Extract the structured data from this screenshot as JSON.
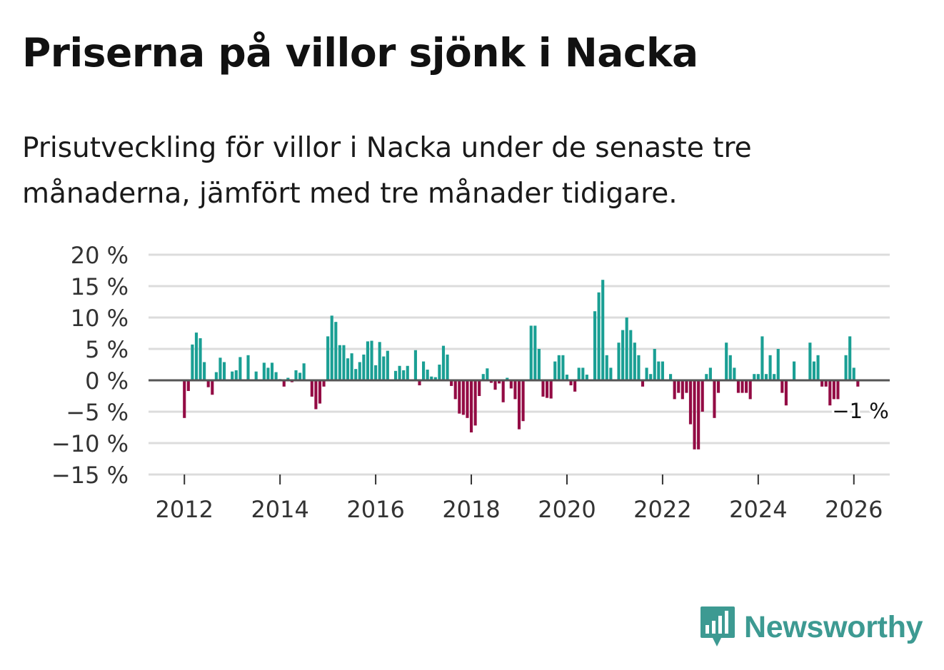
{
  "title": "Priserna på villor sjönk i Nacka",
  "subtitle": "Prisutveckling för villor i Nacka under de senaste tre månaderna, jämfört med tre månader tidigare.",
  "brand": {
    "name": "Newsworthy",
    "icon": "bar-chart-speech-bubble-icon",
    "color": "#3d9a92"
  },
  "colors": {
    "positive": "#1a9f94",
    "negative": "#930b44",
    "zero_line": "#555555",
    "grid": "#dcdcdc"
  },
  "chart_data": {
    "type": "bar",
    "title": "Priserna på villor sjönk i Nacka",
    "xlabel": "",
    "ylabel": "",
    "x_unit": "month",
    "ylim": [
      -15,
      20
    ],
    "xlim": [
      "2011-04",
      "2026-10"
    ],
    "yticks": [
      20,
      15,
      10,
      5,
      0,
      -5,
      -10,
      -15
    ],
    "ytick_labels": [
      "20 %",
      "15 %",
      "10 %",
      "5 %",
      "0 %",
      "−5 %",
      "−10 %",
      "−15 %"
    ],
    "xticks": [
      "2012",
      "2014",
      "2016",
      "2018",
      "2020",
      "2022",
      "2024",
      "2026"
    ],
    "grid": true,
    "legend": "none",
    "annotation": {
      "x": "2026-02",
      "y": -1,
      "text": "−1 %"
    },
    "x": [
      "2012-01",
      "2012-02",
      "2012-03",
      "2012-04",
      "2012-05",
      "2012-06",
      "2012-07",
      "2012-08",
      "2012-09",
      "2012-10",
      "2012-11",
      "2012-12",
      "2013-01",
      "2013-02",
      "2013-03",
      "2013-04",
      "2013-05",
      "2013-06",
      "2013-07",
      "2013-08",
      "2013-09",
      "2013-10",
      "2013-11",
      "2013-12",
      "2014-01",
      "2014-02",
      "2014-03",
      "2014-04",
      "2014-05",
      "2014-06",
      "2014-07",
      "2014-08",
      "2014-09",
      "2014-10",
      "2014-11",
      "2014-12",
      "2015-01",
      "2015-02",
      "2015-03",
      "2015-04",
      "2015-05",
      "2015-06",
      "2015-07",
      "2015-08",
      "2015-09",
      "2015-10",
      "2015-11",
      "2015-12",
      "2016-01",
      "2016-02",
      "2016-03",
      "2016-04",
      "2016-05",
      "2016-06",
      "2016-07",
      "2016-08",
      "2016-09",
      "2016-10",
      "2016-11",
      "2016-12",
      "2017-01",
      "2017-02",
      "2017-03",
      "2017-04",
      "2017-05",
      "2017-06",
      "2017-07",
      "2017-08",
      "2017-09",
      "2017-10",
      "2017-11",
      "2017-12",
      "2018-01",
      "2018-02",
      "2018-03",
      "2018-04",
      "2018-05",
      "2018-06",
      "2018-07",
      "2018-08",
      "2018-09",
      "2018-10",
      "2018-11",
      "2018-12",
      "2019-01",
      "2019-02",
      "2019-03",
      "2019-04",
      "2019-05",
      "2019-06",
      "2019-07",
      "2019-08",
      "2019-09",
      "2019-10",
      "2019-11",
      "2019-12",
      "2020-01",
      "2020-02",
      "2020-03",
      "2020-04",
      "2020-05",
      "2020-06",
      "2020-07",
      "2020-08",
      "2020-09",
      "2020-10",
      "2020-11",
      "2020-12",
      "2021-01",
      "2021-02",
      "2021-03",
      "2021-04",
      "2021-05",
      "2021-06",
      "2021-07",
      "2021-08",
      "2021-09",
      "2021-10",
      "2021-11",
      "2021-12",
      "2022-01",
      "2022-02",
      "2022-03",
      "2022-04",
      "2022-05",
      "2022-06",
      "2022-07",
      "2022-08",
      "2022-09",
      "2022-10",
      "2022-11",
      "2022-12",
      "2023-01",
      "2023-02",
      "2023-03",
      "2023-04",
      "2023-05",
      "2023-06",
      "2023-07",
      "2023-08",
      "2023-09",
      "2023-10",
      "2023-11",
      "2023-12",
      "2024-01",
      "2024-02",
      "2024-03",
      "2024-04",
      "2024-05",
      "2024-06",
      "2024-07",
      "2024-08",
      "2024-09",
      "2024-10",
      "2024-11",
      "2024-12",
      "2025-01",
      "2025-02",
      "2025-03",
      "2025-04",
      "2025-05",
      "2025-06",
      "2025-07",
      "2025-08",
      "2025-09",
      "2025-10",
      "2025-11",
      "2025-12",
      "2026-01",
      "2026-02"
    ],
    "values": [
      -6,
      -1.7,
      5.7,
      7.6,
      6.7,
      2.9,
      -1.1,
      -2.3,
      1.3,
      3.6,
      2.9,
      0,
      1.4,
      1.6,
      3.7,
      0,
      4.0,
      0,
      1.4,
      0,
      2.8,
      2.0,
      2.8,
      1.3,
      0.2,
      -1.0,
      0.4,
      -0.3,
      1.6,
      1.2,
      2.7,
      0,
      -2.6,
      -4.6,
      -3.7,
      -1.0,
      7.0,
      10.3,
      9.3,
      5.6,
      5.6,
      3.5,
      4.3,
      1.8,
      2.9,
      4.1,
      6.2,
      6.3,
      2.4,
      6.1,
      3.8,
      4.7,
      0,
      1.5,
      2.3,
      1.6,
      2.3,
      0,
      4.8,
      -0.8,
      3.0,
      1.7,
      0.6,
      0.5,
      2.5,
      5.5,
      4.1,
      -0.9,
      -3.0,
      -5.3,
      -5.5,
      -6.0,
      -8.3,
      -7.2,
      -2.5,
      1.0,
      1.9,
      -0.4,
      -1.5,
      -0.5,
      -3.5,
      0.4,
      -1.3,
      -3.0,
      -7.8,
      -6.5,
      0,
      8.7,
      8.7,
      5.0,
      -2.6,
      -2.8,
      -2.9,
      3.0,
      4.0,
      4.0,
      0.9,
      -0.8,
      -1.8,
      2.0,
      2.0,
      0.9,
      0,
      11.0,
      14.0,
      16.0,
      4.0,
      2.0,
      0,
      6.0,
      8.0,
      10.0,
      8.0,
      6.0,
      4.0,
      -1.0,
      2.0,
      1.0,
      5.0,
      3.0,
      3.0,
      0,
      1.0,
      -3.0,
      -2.0,
      -3.0,
      -2.0,
      -7.0,
      -11.0,
      -11.0,
      -5.0,
      1.0,
      2.0,
      -6.0,
      -2.0,
      0,
      6.0,
      4.0,
      2.0,
      -2.0,
      -2.0,
      -2.0,
      -3.0,
      1.0,
      1.0,
      7.0,
      1.0,
      4.0,
      1.0,
      5.0,
      -2.0,
      -4.0,
      0,
      3.0,
      0,
      0,
      0,
      6.0,
      3.0,
      4.0,
      -1.0,
      -1.0,
      -4.0,
      -3.0,
      -3.0,
      0,
      4.0,
      7.0,
      2.0,
      -1.0
    ]
  }
}
